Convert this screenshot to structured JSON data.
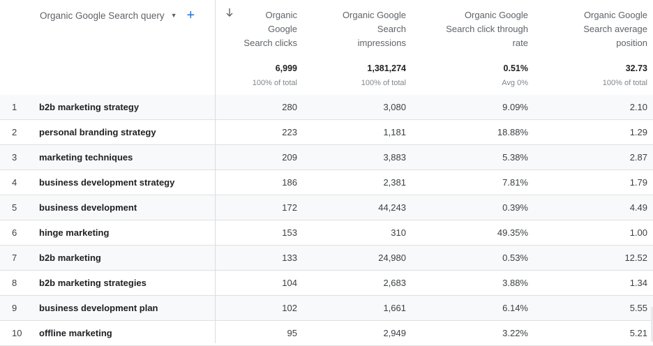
{
  "dimension": {
    "label": "Organic Google Search query",
    "caret_icon": "▼",
    "add_icon": "+"
  },
  "columns": [
    {
      "lines": [
        "Organic",
        "Google",
        "Search clicks"
      ],
      "total": "6,999",
      "sub": "100% of total"
    },
    {
      "lines": [
        "Organic Google",
        "Search",
        "impressions"
      ],
      "total": "1,381,274",
      "sub": "100% of total"
    },
    {
      "lines": [
        "Organic Google",
        "Search click through",
        "rate"
      ],
      "total": "0.51%",
      "sub": "Avg 0%"
    },
    {
      "lines": [
        "Organic Google",
        "Search average",
        "position"
      ],
      "total": "32.73",
      "sub": "100% of total"
    }
  ],
  "rows": [
    {
      "idx": "1",
      "query": "b2b marketing strategy",
      "clicks": "280",
      "impressions": "3,080",
      "ctr": "9.09%",
      "position": "2.10"
    },
    {
      "idx": "2",
      "query": "personal branding strategy",
      "clicks": "223",
      "impressions": "1,181",
      "ctr": "18.88%",
      "position": "1.29"
    },
    {
      "idx": "3",
      "query": "marketing techniques",
      "clicks": "209",
      "impressions": "3,883",
      "ctr": "5.38%",
      "position": "2.87"
    },
    {
      "idx": "4",
      "query": "business development strategy",
      "clicks": "186",
      "impressions": "2,381",
      "ctr": "7.81%",
      "position": "1.79"
    },
    {
      "idx": "5",
      "query": "business development",
      "clicks": "172",
      "impressions": "44,243",
      "ctr": "0.39%",
      "position": "4.49"
    },
    {
      "idx": "6",
      "query": "hinge marketing",
      "clicks": "153",
      "impressions": "310",
      "ctr": "49.35%",
      "position": "1.00"
    },
    {
      "idx": "7",
      "query": "b2b marketing",
      "clicks": "133",
      "impressions": "24,980",
      "ctr": "0.53%",
      "position": "12.52"
    },
    {
      "idx": "8",
      "query": "b2b marketing strategies",
      "clicks": "104",
      "impressions": "2,683",
      "ctr": "3.88%",
      "position": "1.34"
    },
    {
      "idx": "9",
      "query": "business development plan",
      "clicks": "102",
      "impressions": "1,661",
      "ctr": "6.14%",
      "position": "5.55"
    },
    {
      "idx": "10",
      "query": "offline marketing",
      "clicks": "95",
      "impressions": "2,949",
      "ctr": "3.22%",
      "position": "5.21"
    }
  ],
  "colors": {
    "accent": "#1a73e8",
    "row_shade": "#f8f9fa",
    "divider": "#dadce0"
  }
}
